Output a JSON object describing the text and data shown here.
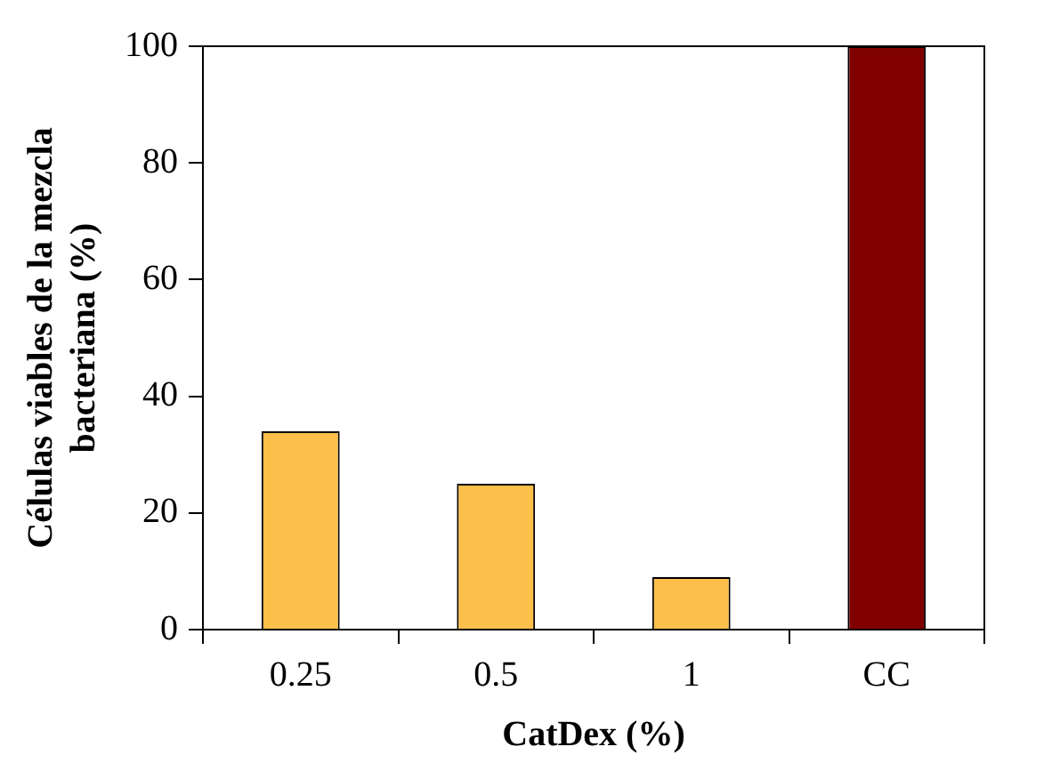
{
  "chart_data": {
    "type": "bar",
    "xlabel": "CatDex (%)",
    "ylabel": "Células viables de la mezcla bacteriana (%)",
    "categories": [
      "0.25",
      "0.5",
      "1",
      "CC"
    ],
    "values": [
      34,
      25,
      9,
      100
    ],
    "colors": [
      "#fbbf4a",
      "#fbbf4a",
      "#fbbf4a",
      "#800000"
    ],
    "ylim": [
      0,
      100
    ],
    "yticks": [
      0,
      20,
      40,
      60,
      80,
      100
    ],
    "grid": false,
    "legend": false
  }
}
